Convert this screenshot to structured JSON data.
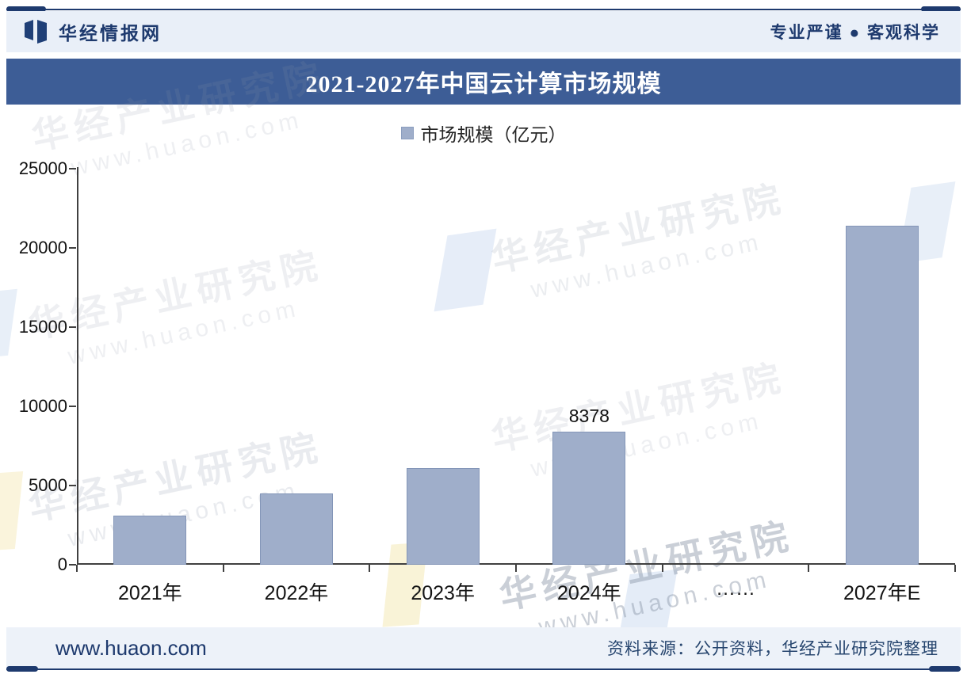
{
  "header": {
    "brand": "华经情报网",
    "slogan": "专业严谨 ● 客观科学"
  },
  "title_bar": {
    "title": "2021-2027年中国云计算市场规模"
  },
  "legend": {
    "label": "市场规模（亿元）",
    "marker_color": "#9FAECA"
  },
  "chart_data": {
    "type": "bar",
    "title": "2021-2027年中国云计算市场规模",
    "categories": [
      "2021年",
      "2022年",
      "2023年",
      "2024年",
      "……",
      "2027年E"
    ],
    "values": [
      3100,
      4500,
      6100,
      8378,
      null,
      21400
    ],
    "bar_labels": [
      null,
      null,
      null,
      "8378",
      null,
      null
    ],
    "ylabel": "市场规模（亿元）",
    "ylim": [
      0,
      25000
    ],
    "yticks": [
      0,
      5000,
      10000,
      15000,
      20000,
      25000
    ],
    "grid": false,
    "legend_position": "top",
    "bar_color": "#9FAECA"
  },
  "watermark": {
    "line1": "华经产业研究院",
    "line2": "www.huaon.com"
  },
  "footer": {
    "site": "www.huaon.com",
    "source": "资料来源：公开资料，华经产业研究院整理"
  },
  "colors": {
    "accent_navy": "#1E3A6E",
    "title_bar_bg": "#3D5D96",
    "header_bg": "#E9EFF8",
    "bar_fill": "#9FAECA",
    "axis": "#404040"
  }
}
